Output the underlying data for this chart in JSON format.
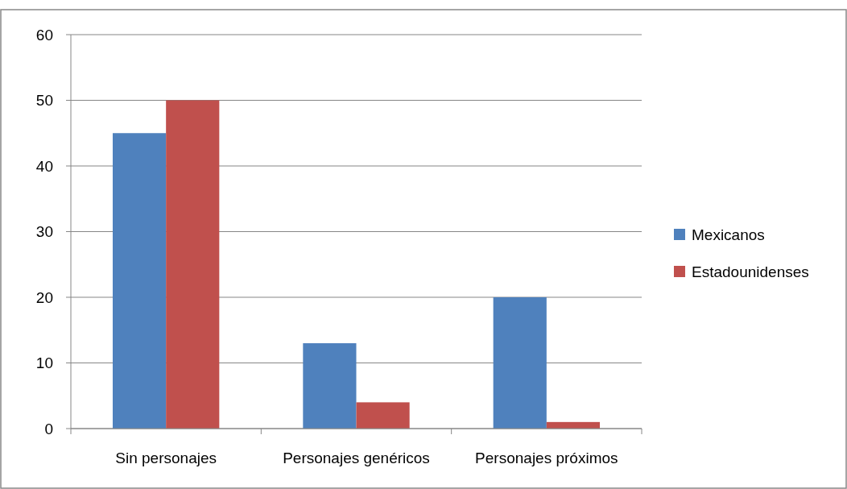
{
  "chart_data": {
    "type": "bar",
    "categories": [
      "Sin personajes",
      "Personajes genéricos",
      "Personajes próximos"
    ],
    "series": [
      {
        "name": "Mexicanos",
        "color": "#4f81bd",
        "values": [
          45,
          13,
          20
        ]
      },
      {
        "name": "Estadounidenses",
        "color": "#c0504d",
        "values": [
          50,
          4,
          1
        ]
      }
    ],
    "ylim": [
      0,
      60
    ],
    "yticks": [
      0,
      10,
      20,
      30,
      40,
      50,
      60
    ],
    "grid": "y",
    "legend": "right"
  }
}
